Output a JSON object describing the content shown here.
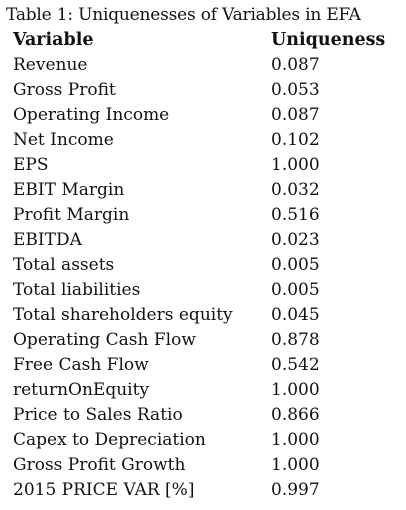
{
  "caption": "Table 1: Uniquenesses of Variables in EFA",
  "table": {
    "headers": [
      "Variable",
      "Uniqueness"
    ],
    "rows": [
      [
        "Revenue",
        "0.087"
      ],
      [
        "Gross Profit",
        "0.053"
      ],
      [
        "Operating Income",
        "0.087"
      ],
      [
        "Net Income",
        "0.102"
      ],
      [
        "EPS",
        "1.000"
      ],
      [
        "EBIT Margin",
        "0.032"
      ],
      [
        "Profit Margin",
        "0.516"
      ],
      [
        "EBITDA",
        "0.023"
      ],
      [
        "Total assets",
        "0.005"
      ],
      [
        "Total liabilities",
        "0.005"
      ],
      [
        "Total shareholders equity",
        "0.045"
      ],
      [
        "Operating Cash Flow",
        "0.878"
      ],
      [
        "Free Cash Flow",
        "0.542"
      ],
      [
        "returnOnEquity",
        "1.000"
      ],
      [
        "Price to Sales Ratio",
        "0.866"
      ],
      [
        "Capex to Depreciation",
        "1.000"
      ],
      [
        "Gross Profit Growth",
        "1.000"
      ],
      [
        "2015 PRICE VAR [%]",
        "0.997"
      ]
    ]
  }
}
